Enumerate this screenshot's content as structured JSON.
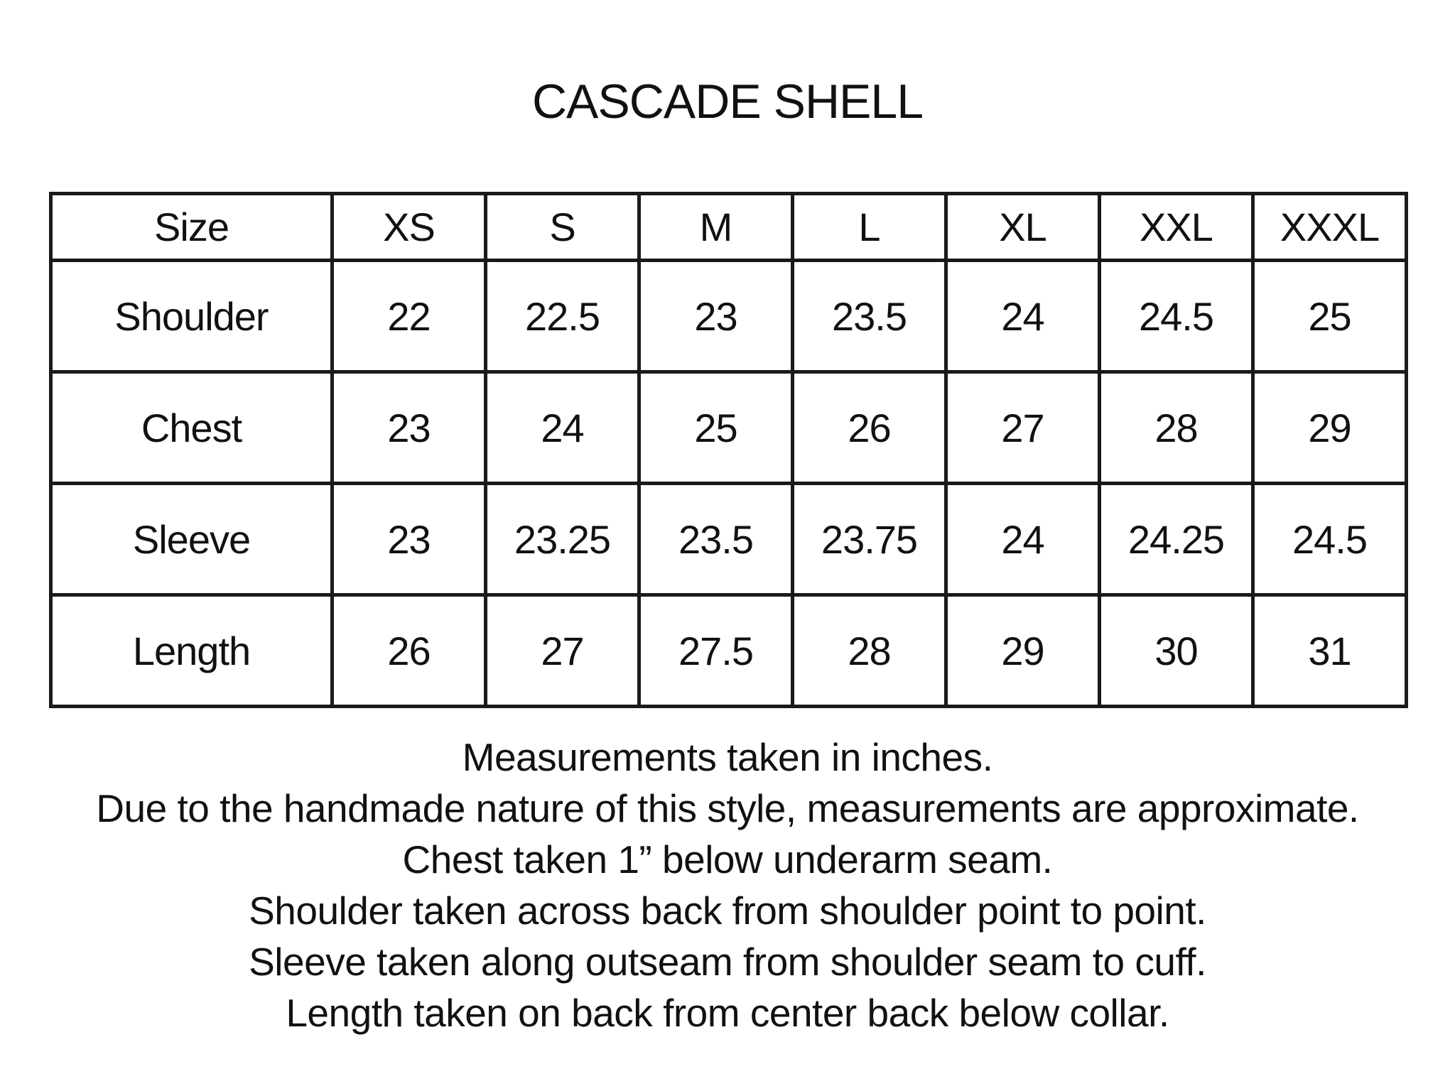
{
  "title": "CASCADE SHELL",
  "table": {
    "header": [
      "Size",
      "XS",
      "S",
      "M",
      "L",
      "XL",
      "XXL",
      "XXXL"
    ],
    "rows": [
      {
        "label": "Shoulder",
        "values": [
          "22",
          "22.5",
          "23",
          "23.5",
          "24",
          "24.5",
          "25"
        ]
      },
      {
        "label": "Chest",
        "values": [
          "23",
          "24",
          "25",
          "26",
          "27",
          "28",
          "29"
        ]
      },
      {
        "label": "Sleeve",
        "values": [
          "23",
          "23.25",
          "23.5",
          "23.75",
          "24",
          "24.25",
          "24.5"
        ]
      },
      {
        "label": "Length",
        "values": [
          "26",
          "27",
          "27.5",
          "28",
          "29",
          "30",
          "31"
        ]
      }
    ]
  },
  "notes": [
    "Measurements taken in inches.",
    "Due to the handmade nature of this style, measurements are approximate.",
    "Chest taken 1” below underarm seam.",
    "Shoulder taken across back from shoulder point to point.",
    "Sleeve taken along outseam from shoulder seam to cuff.",
    "Length taken on back from center back below collar."
  ]
}
